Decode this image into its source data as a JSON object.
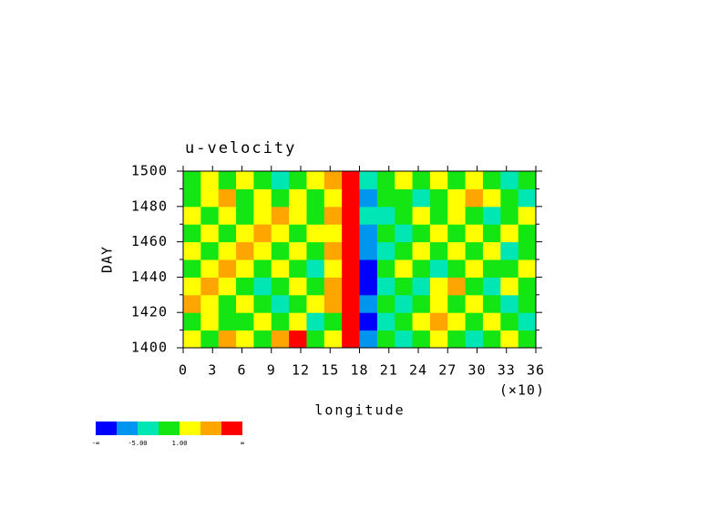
{
  "chart_data": {
    "type": "heatmap",
    "title": "u-velocity",
    "x_label": "longitude",
    "x_multiplier": "(×10)",
    "y_label": "DAY",
    "xlim": [
      0,
      36
    ],
    "xticks": [
      0,
      3,
      6,
      9,
      12,
      15,
      18,
      21,
      24,
      27,
      30,
      33,
      36
    ],
    "ylim": [
      1400,
      1500
    ],
    "yticks": [
      1400,
      1420,
      1440,
      1460,
      1480,
      1500
    ],
    "yminor": [
      1410,
      1430,
      1450,
      1470,
      1490
    ],
    "colors": [
      "#0000ff",
      "#0096f0",
      "#00e6b4",
      "#14e614",
      "#ffff00",
      "#ffa500",
      "#ff0000"
    ],
    "boundary_labels": [
      "-∞",
      null,
      "-5.00",
      null,
      "1.00",
      null,
      null,
      "∞"
    ],
    "z": [
      [
        4,
        3,
        5,
        4,
        3,
        5,
        6,
        3,
        4,
        6,
        1,
        3,
        2,
        3,
        4,
        3,
        2,
        3,
        4,
        3
      ],
      [
        3,
        4,
        3,
        3,
        4,
        3,
        4,
        2,
        3,
        6,
        0,
        2,
        3,
        4,
        5,
        4,
        3,
        4,
        3,
        2
      ],
      [
        5,
        4,
        3,
        4,
        3,
        2,
        3,
        4,
        5,
        6,
        1,
        3,
        2,
        3,
        4,
        3,
        4,
        3,
        2,
        3
      ],
      [
        4,
        5,
        4,
        3,
        2,
        3,
        4,
        3,
        5,
        6,
        0,
        2,
        3,
        2,
        4,
        5,
        3,
        2,
        4,
        3
      ],
      [
        3,
        4,
        5,
        4,
        3,
        4,
        3,
        2,
        4,
        6,
        0,
        3,
        4,
        3,
        2,
        3,
        4,
        3,
        3,
        4
      ],
      [
        4,
        3,
        4,
        5,
        4,
        3,
        4,
        3,
        5,
        6,
        1,
        2,
        3,
        4,
        3,
        4,
        3,
        4,
        2,
        3
      ],
      [
        3,
        4,
        3,
        4,
        5,
        4,
        3,
        4,
        4,
        6,
        1,
        3,
        2,
        3,
        4,
        3,
        4,
        3,
        4,
        3
      ],
      [
        4,
        3,
        4,
        3,
        4,
        5,
        4,
        3,
        5,
        6,
        2,
        2,
        3,
        4,
        3,
        4,
        3,
        2,
        3,
        4
      ],
      [
        3,
        4,
        5,
        3,
        4,
        3,
        4,
        3,
        4,
        6,
        1,
        3,
        3,
        2,
        3,
        4,
        5,
        4,
        3,
        2
      ],
      [
        3,
        4,
        3,
        4,
        3,
        2,
        3,
        4,
        5,
        6,
        2,
        3,
        4,
        3,
        4,
        3,
        4,
        3,
        2,
        3
      ]
    ]
  }
}
